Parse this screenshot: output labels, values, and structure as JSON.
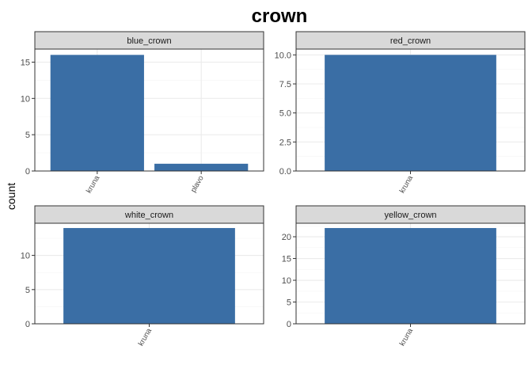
{
  "title": "crown",
  "ylabel": "count",
  "colors": {
    "bar": "#3a6ea5",
    "strip_fill": "#d9d9d9",
    "grid_major": "#ebebeb",
    "grid_minor": "#f5f5f5",
    "panel_border": "#333333"
  },
  "chart_data": {
    "type": "bar",
    "layout": "facet_wrap",
    "grid": true,
    "panels": [
      {
        "strip": "blue_crown",
        "categories": [
          "kruna",
          "plavo"
        ],
        "values": [
          16,
          1
        ],
        "ylim": [
          0,
          16.8
        ],
        "yticks": [
          0,
          5,
          10,
          15
        ],
        "ytick_labels": [
          "0",
          "5",
          "10",
          "15"
        ]
      },
      {
        "strip": "red_crown",
        "categories": [
          "kruna"
        ],
        "values": [
          10
        ],
        "ylim": [
          0,
          10.5
        ],
        "yticks": [
          0,
          2.5,
          5,
          7.5,
          10
        ],
        "ytick_labels": [
          "0.0",
          "2.5",
          "5.0",
          "7.5",
          "10.0"
        ]
      },
      {
        "strip": "white_crown",
        "categories": [
          "kruna"
        ],
        "values": [
          14
        ],
        "ylim": [
          0,
          14.7
        ],
        "yticks": [
          0,
          5,
          10
        ],
        "ytick_labels": [
          "0",
          "5",
          "10"
        ]
      },
      {
        "strip": "yellow_crown",
        "categories": [
          "kruna"
        ],
        "values": [
          22
        ],
        "ylim": [
          0,
          23.1
        ],
        "yticks": [
          0,
          5,
          10,
          15,
          20
        ],
        "ytick_labels": [
          "0",
          "5",
          "10",
          "15",
          "20"
        ]
      }
    ]
  }
}
